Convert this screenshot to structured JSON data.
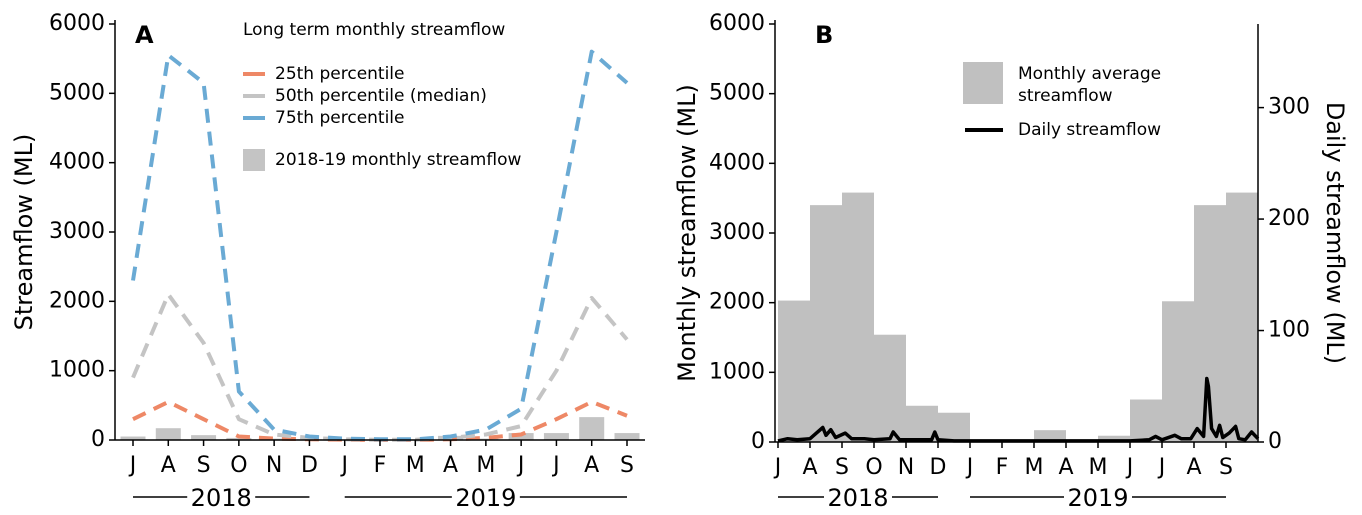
{
  "chart_data": [
    {
      "type": "line",
      "panel_label": "A",
      "y_label": "Streamflow (ML)",
      "legend_title": "Long term monthly streamflow",
      "categories": [
        "J",
        "A",
        "S",
        "O",
        "N",
        "D",
        "J",
        "F",
        "M",
        "A",
        "M",
        "J",
        "J",
        "A",
        "S"
      ],
      "series": [
        {
          "name": "25th percentile",
          "color": "#ee8866",
          "values": [
            300,
            550,
            300,
            50,
            20,
            10,
            5,
            2,
            2,
            10,
            30,
            80,
            300,
            550,
            350
          ]
        },
        {
          "name": "50th percentile (median)",
          "color": "#c4c4c4",
          "values": [
            900,
            2100,
            1400,
            300,
            80,
            30,
            10,
            5,
            5,
            30,
            80,
            200,
            1000,
            2050,
            1450
          ]
        },
        {
          "name": "75th percentile",
          "color": "#6aaad4",
          "values": [
            2300,
            5550,
            5150,
            700,
            150,
            50,
            20,
            10,
            10,
            50,
            150,
            450,
            3000,
            5600,
            5150
          ]
        },
        {
          "name": "2018-19 monthly streamflow",
          "type": "bar",
          "color": "#c4c4c4",
          "values": [
            50,
            170,
            70,
            30,
            20,
            10,
            5,
            5,
            5,
            60,
            20,
            100,
            100,
            330,
            100
          ]
        }
      ],
      "ylim": [
        0,
        6000
      ],
      "yticks": [
        0,
        1000,
        2000,
        3000,
        4000,
        5000,
        6000
      ],
      "x_groups": [
        {
          "label": "2018",
          "count": 6
        },
        {
          "label": "2019",
          "count": 9
        }
      ]
    },
    {
      "type": "bar",
      "panel_label": "B",
      "y_label": "Monthly streamflow (ML)",
      "y2_label": "Daily streamflow (ML)",
      "categories": [
        "J",
        "A",
        "S",
        "O",
        "N",
        "D",
        "J",
        "F",
        "M",
        "A",
        "M",
        "J",
        "J",
        "A",
        "S"
      ],
      "series": [
        {
          "name": "Monthly average streamflow",
          "color": "#c0c0c0",
          "values": [
            2030,
            3400,
            3580,
            1540,
            520,
            420,
            10,
            10,
            170,
            10,
            90,
            610,
            2020,
            3400,
            3580
          ]
        },
        {
          "name": "Daily streamflow",
          "type": "line",
          "axis": "y2",
          "color": "#000000",
          "x": [
            0,
            0.3,
            0.6,
            1.0,
            1.2,
            1.4,
            1.5,
            1.65,
            1.8,
            2.1,
            2.3,
            2.7,
            3.0,
            3.5,
            3.6,
            3.8,
            4.3,
            4.8,
            4.9,
            5.0,
            5.5,
            6,
            7,
            8,
            9,
            10,
            11,
            11.6,
            11.8,
            12,
            12.4,
            12.6,
            12.9,
            13.1,
            13.3,
            13.4,
            13.45,
            13.55,
            13.7,
            13.8,
            13.9,
            14.1,
            14.3,
            14.4,
            14.6,
            14.8,
            15
          ],
          "values": [
            1,
            3,
            2,
            3,
            8,
            13,
            6,
            11,
            4,
            8,
            3,
            3,
            2,
            3,
            9,
            2,
            2,
            2,
            9,
            2,
            1,
            1,
            1,
            1,
            1,
            1,
            1,
            2,
            5,
            2,
            6,
            3,
            3,
            12,
            5,
            57,
            50,
            12,
            5,
            15,
            4,
            8,
            14,
            3,
            2,
            9,
            3
          ]
        }
      ],
      "xlim": [
        0,
        15
      ],
      "ylim": [
        0,
        6000
      ],
      "yticks": [
        0,
        1000,
        2000,
        3000,
        4000,
        5000,
        6000
      ],
      "y2lim": [
        0,
        375
      ],
      "y2ticks": [
        0,
        100,
        200,
        300
      ],
      "x_groups": [
        {
          "label": "2018",
          "count": 6
        },
        {
          "label": "2019",
          "count": 9
        }
      ]
    }
  ]
}
